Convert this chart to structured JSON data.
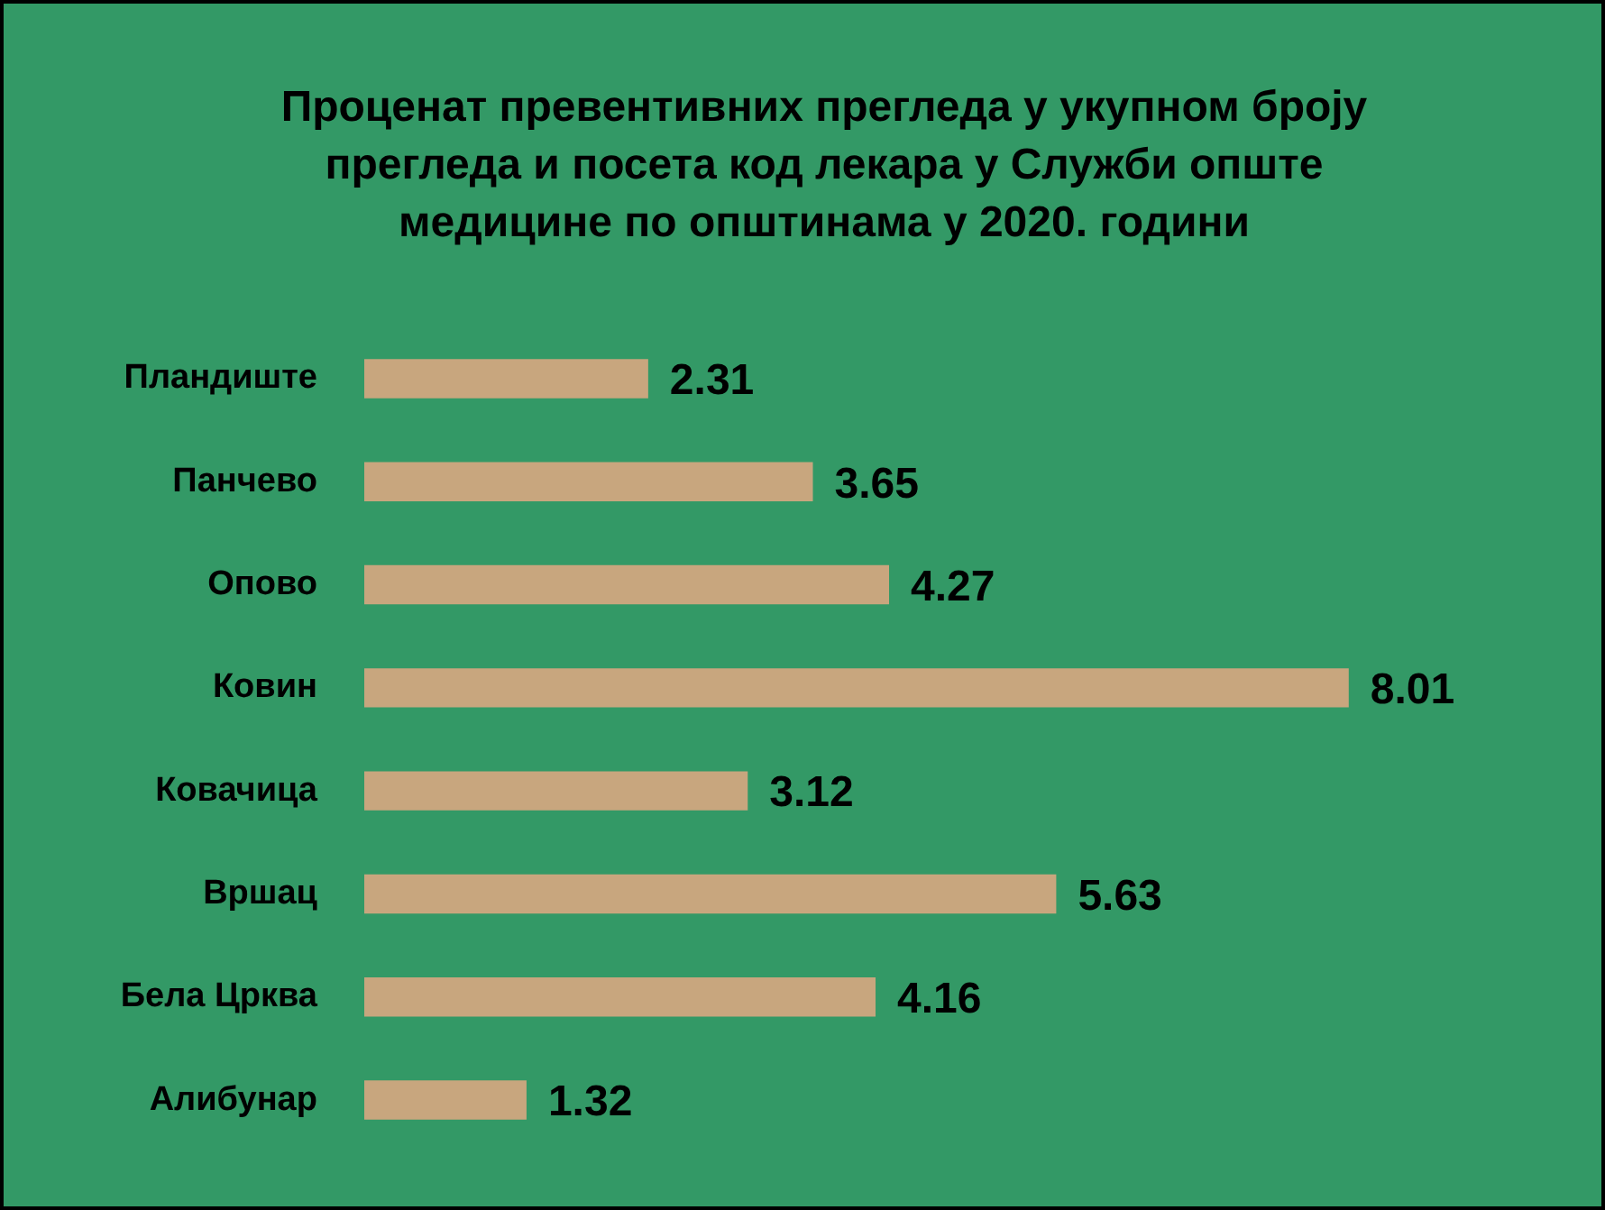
{
  "chart_data": {
    "type": "bar",
    "orientation": "horizontal",
    "title": "Проценат превентивних прегледа у укупном броју прегледа и посета код лекара у Служби опште медицине по општинама у 2020. години",
    "categories": [
      "Пландиште",
      "Панчево",
      "Опово",
      "Ковин",
      "Ковачица",
      "Вршац",
      "Бела Црква",
      "Алибунар"
    ],
    "values": [
      2.31,
      3.65,
      4.27,
      8.01,
      3.12,
      5.63,
      4.16,
      1.32
    ],
    "color": "#c8a67e",
    "data_labels": true
  }
}
